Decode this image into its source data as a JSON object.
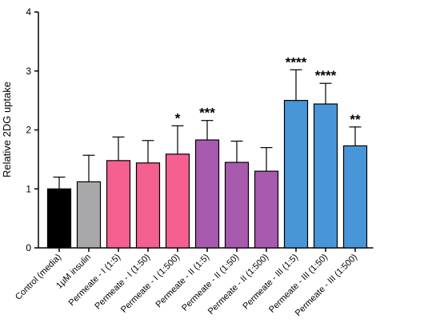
{
  "chart_data": {
    "type": "bar",
    "ylabel": "Relative 2DG uptake",
    "xlabel": "",
    "ylim": [
      0,
      4
    ],
    "yticks": [
      0,
      1,
      2,
      3,
      4
    ],
    "grid": false,
    "categories": [
      "Control (media)",
      "1μM insulin",
      "Permeate - I (1:5)",
      "Permeate - I (1:50)",
      "Permeate - I (1:500)",
      "Permeate - II (1:5)",
      "Permeate - II (1:50)",
      "Permeate - II (1:500)",
      "Permeate - III (1:5)",
      "Permeate - III (1:50)",
      "Permeate - III (1:500)"
    ],
    "values": [
      1.0,
      1.12,
      1.48,
      1.44,
      1.59,
      1.83,
      1.45,
      1.3,
      2.5,
      2.44,
      1.73
    ],
    "error_upper": [
      0.2,
      0.45,
      0.4,
      0.38,
      0.48,
      0.33,
      0.36,
      0.4,
      0.52,
      0.35,
      0.32
    ],
    "significance": [
      "",
      "",
      "",
      "",
      "*",
      "***",
      "",
      "",
      "****",
      "****",
      "**"
    ],
    "bar_colors": [
      "#000000",
      "#a8a8ab",
      "#f4608f",
      "#f4608f",
      "#f4608f",
      "#a85aae",
      "#a85aae",
      "#a85aae",
      "#4896d8",
      "#4896d8",
      "#4896d8"
    ]
  }
}
